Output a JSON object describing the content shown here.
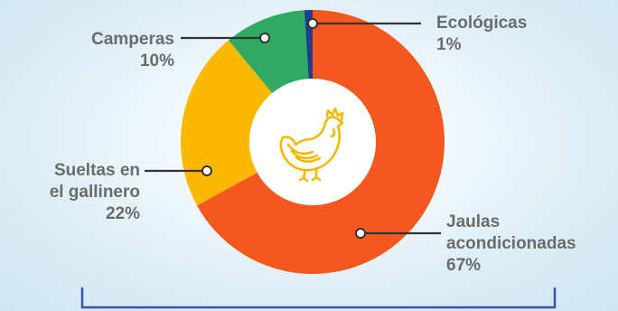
{
  "colors": {
    "background": "#d6eaf4",
    "label_text": "#6b6b6b",
    "leader_line": "#333333",
    "bracket": "#3a53a8",
    "center_circle": "#ffffff",
    "icon_stroke": "#f5b800"
  },
  "icon": "chicken-icon",
  "chart_data": {
    "type": "pie",
    "donut": true,
    "categories": [
      "Jaulas acondicionadas",
      "Sueltas en el gallinero",
      "Camperas",
      "Ecológicas"
    ],
    "values": [
      67,
      22,
      10,
      1
    ],
    "unit": "%",
    "colors": [
      "#f4581f",
      "#fbb800",
      "#30a963",
      "#1f3e8c"
    ],
    "labels": [
      {
        "name": "Jaulas acondicionadas",
        "pct": "67%"
      },
      {
        "name": "Sueltas en el gallinero",
        "pct": "22%"
      },
      {
        "name": "Camperas",
        "pct": "10%"
      },
      {
        "name": "Ecológicas",
        "pct": "1%"
      }
    ]
  }
}
